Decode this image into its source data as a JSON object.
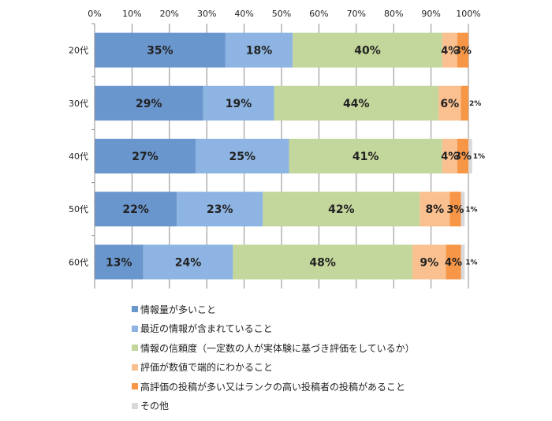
{
  "chart_data": {
    "type": "bar",
    "orientation": "horizontal",
    "stacked": true,
    "percent": true,
    "categories": [
      "20代",
      "30代",
      "40代",
      "50代",
      "60代"
    ],
    "x_ticks": [
      "0%",
      "10%",
      "20%",
      "30%",
      "40%",
      "50%",
      "60%",
      "70%",
      "80%",
      "90%",
      "100%"
    ],
    "xlim": [
      0,
      100
    ],
    "grid": "vertical",
    "legend_position": "bottom",
    "series": [
      {
        "name": "情報量が多いこと",
        "color": "#6a96ce",
        "values": [
          35,
          29,
          27,
          22,
          13
        ],
        "labels": [
          "35%",
          "29%",
          "27%",
          "22%",
          "13%"
        ]
      },
      {
        "name": "最近の情報が含まれていること",
        "color": "#8db4e2",
        "values": [
          18,
          19,
          25,
          23,
          24
        ],
        "labels": [
          "18%",
          "19%",
          "25%",
          "23%",
          "24%"
        ]
      },
      {
        "name": "情報の信頼度（一定数の人が実体験に基づき評価をしているか）",
        "color": "#c3d69b",
        "values": [
          40,
          44,
          41,
          42,
          48
        ],
        "labels": [
          "40%",
          "44%",
          "41%",
          "42%",
          "48%"
        ]
      },
      {
        "name": "評価が数値で端的にわかること",
        "color": "#fac090",
        "values": [
          4,
          6,
          4,
          8,
          9
        ],
        "labels": [
          "4%",
          "6%",
          "4%",
          "8%",
          "9%"
        ]
      },
      {
        "name": "高評価の投稿が多い又はランクの高い投稿者の投稿があること",
        "color": "#f79646",
        "values": [
          3,
          2,
          3,
          3,
          4
        ],
        "labels": [
          "3%",
          "2%",
          "3%",
          "3%",
          "4%"
        ]
      },
      {
        "name": "その他",
        "color": "#d9d9d9",
        "values": [
          0,
          0,
          1,
          1,
          1
        ],
        "labels": [
          "",
          "",
          "1%",
          "1%",
          "1%"
        ]
      }
    ]
  }
}
